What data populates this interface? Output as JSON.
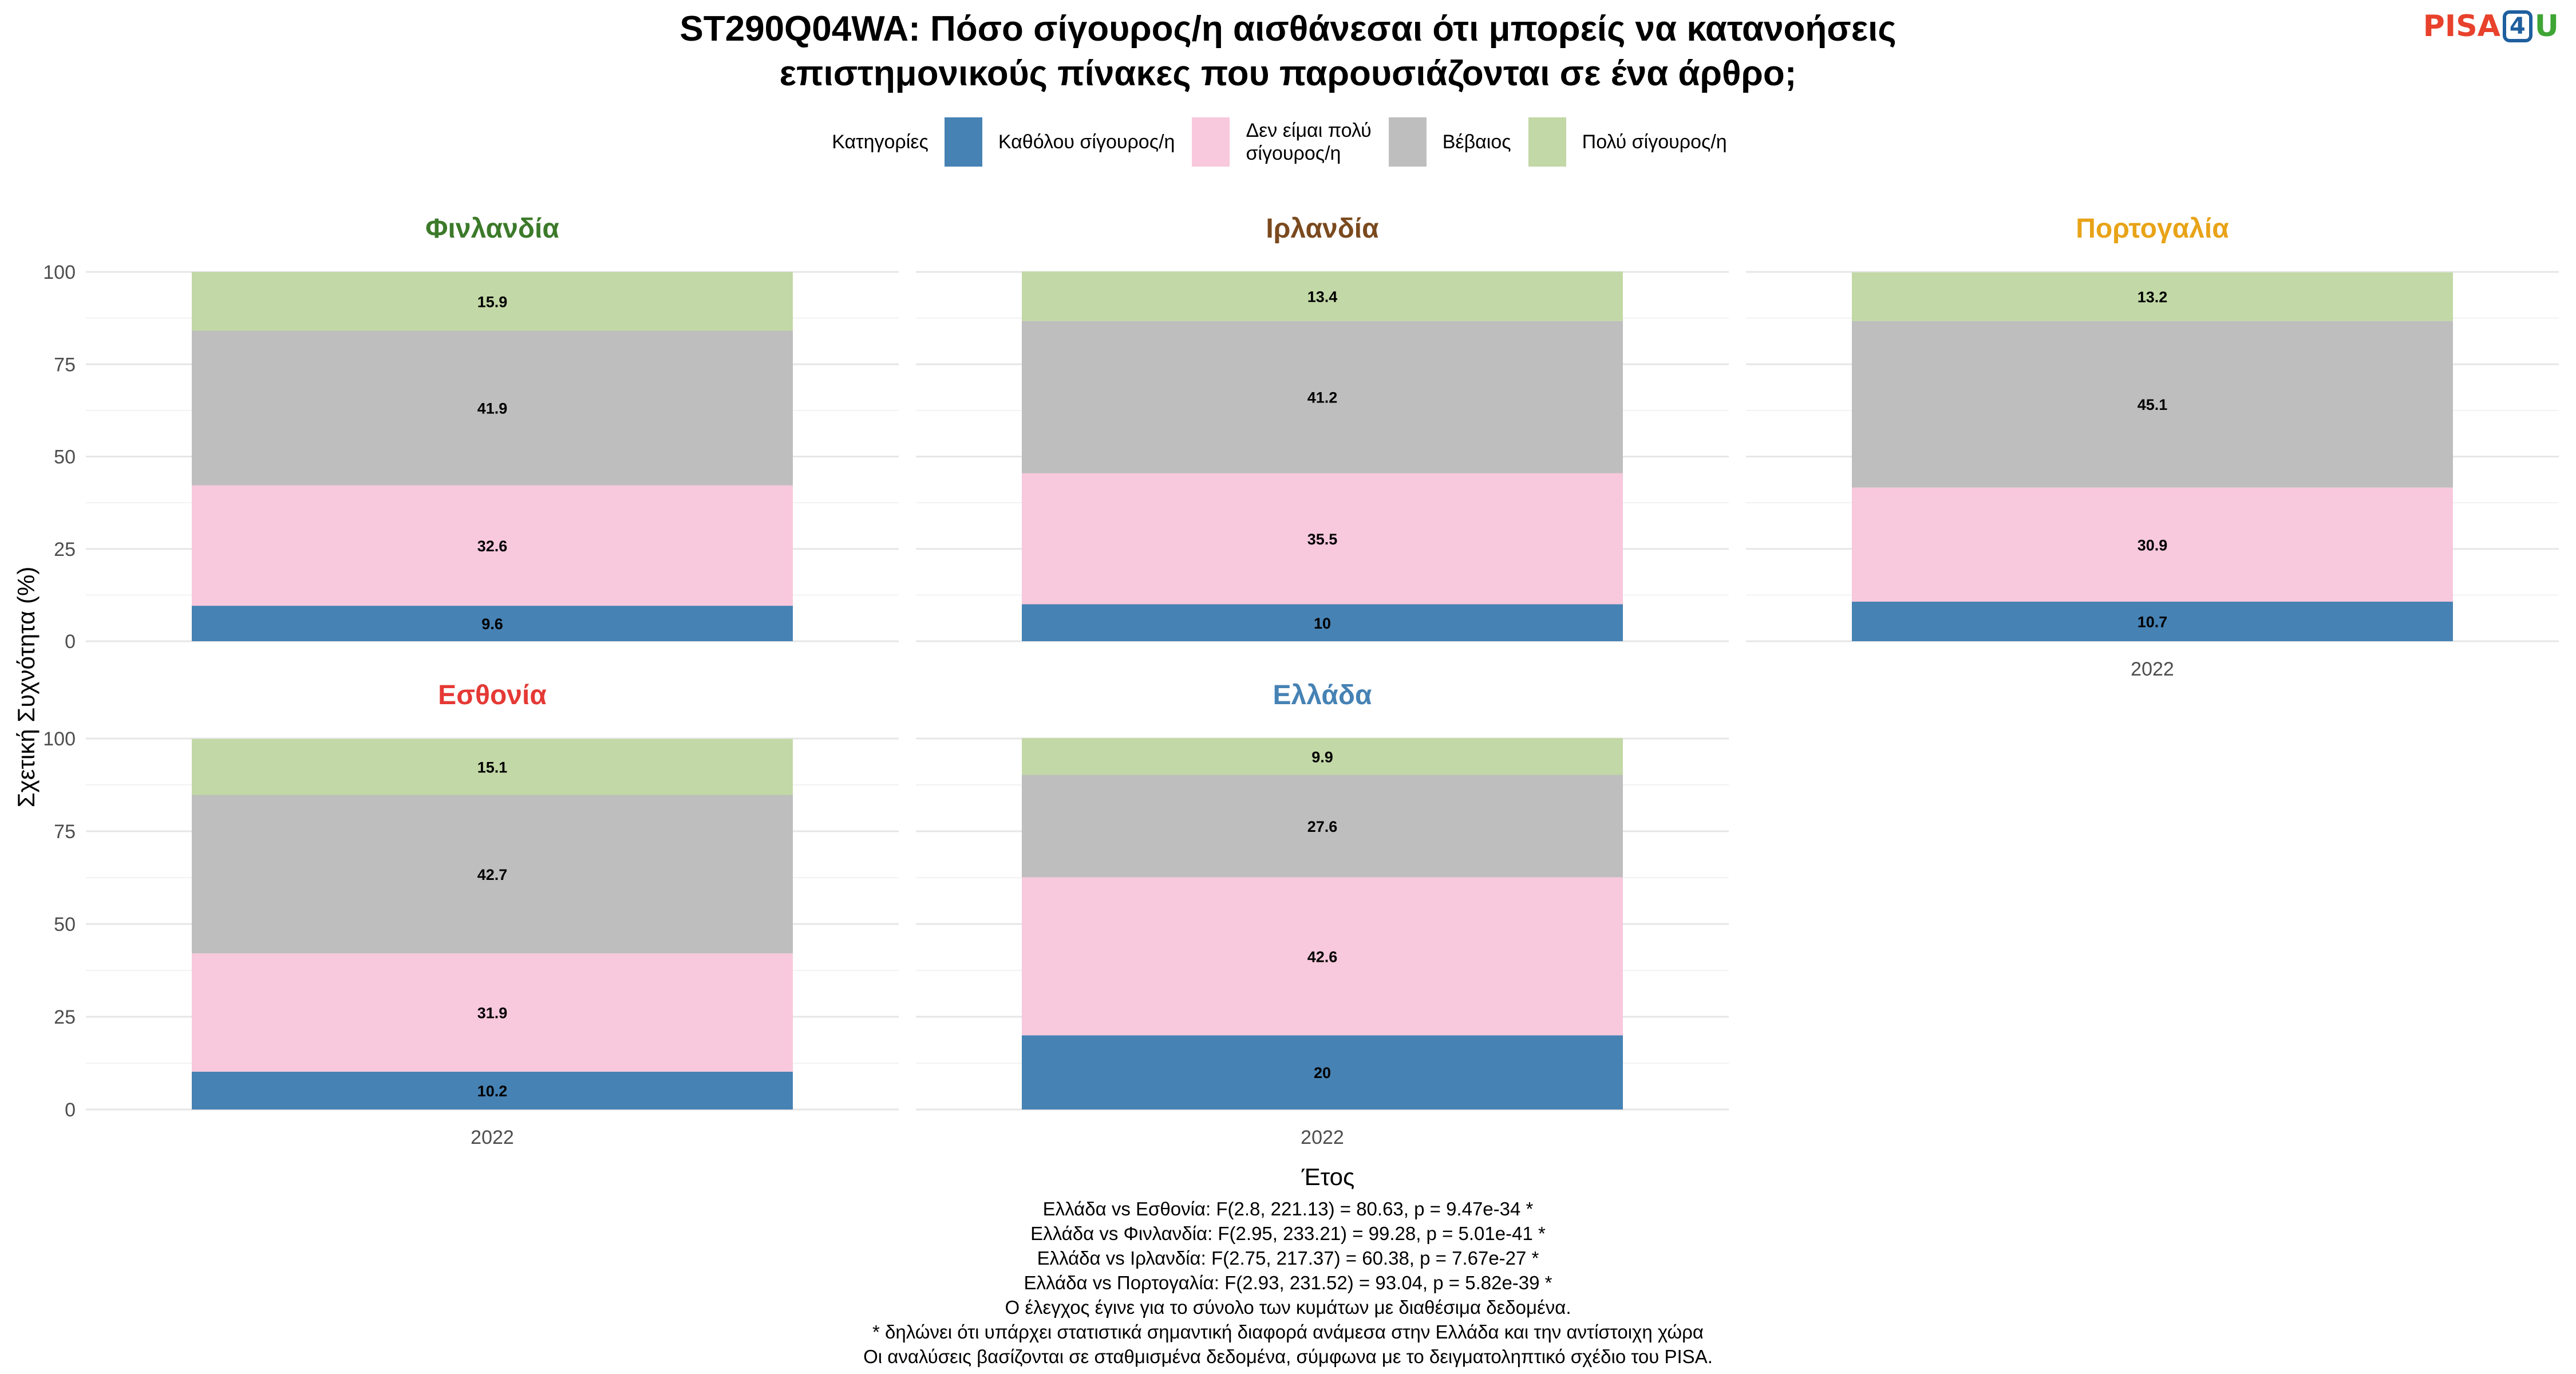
{
  "title": {
    "line1": "ST290Q04WA: Πόσο σίγουρος/η αισθάνεσαι ότι μπορείς να κατανοήσεις",
    "line2": "επιστημονικούς πίνακες που παρουσιάζονται σε ένα άρθρο;"
  },
  "logo": {
    "part1": "PISA",
    "part2": "4",
    "part3": "U"
  },
  "legend": {
    "title": "Κατηγορίες",
    "placement": "top",
    "items": [
      {
        "lines": [
          "Καθόλου σίγουρος/η"
        ],
        "color": "#4682b4"
      },
      {
        "lines": [
          "Δεν είμαι πολύ",
          "σίγουρος/η"
        ],
        "color": "#f8c8dc"
      },
      {
        "lines": [
          "Βέβαιος"
        ],
        "color": "#bebebe"
      },
      {
        "lines": [
          "Πολύ σίγουρος/η"
        ],
        "color": "#c2d8a6"
      }
    ]
  },
  "chart_data": {
    "type": "bar",
    "stacked": true,
    "xlabel": "Έτος",
    "ylabel": "Σχετική Συχνότητα (%)",
    "ylim": [
      0,
      100
    ],
    "yticks": [
      0,
      25,
      50,
      75,
      100
    ],
    "grid": true,
    "categories": [
      "2022"
    ],
    "series_names": [
      "Καθόλου σίγουρος/η",
      "Δεν είμαι πολύ σίγουρος/η",
      "Βέβαιος",
      "Πολύ σίγουρος/η"
    ],
    "series_colors": [
      "#4682b4",
      "#f8c8dc",
      "#bebebe",
      "#c2d8a6"
    ],
    "panels": [
      {
        "name": "Φινλανδία",
        "title_color": "#3c7a2a",
        "values": [
          9.6,
          32.6,
          41.9,
          15.9
        ],
        "labels": [
          "9.6",
          "32.6",
          "41.9",
          "15.9"
        ]
      },
      {
        "name": "Ιρλανδία",
        "title_color": "#7a4a1e",
        "values": [
          10,
          35.5,
          41.2,
          13.4
        ],
        "labels": [
          "10",
          "35.5",
          "41.2",
          "13.4"
        ]
      },
      {
        "name": "Πορτογαλία",
        "title_color": "#e8a317",
        "values": [
          10.7,
          30.9,
          45.1,
          13.2
        ],
        "labels": [
          "10.7",
          "30.9",
          "45.1",
          "13.2"
        ]
      },
      {
        "name": "Εσθονία",
        "title_color": "#e53935",
        "values": [
          10.2,
          31.9,
          42.7,
          15.1
        ],
        "labels": [
          "10.2",
          "31.9",
          "42.7",
          "15.1"
        ]
      },
      {
        "name": "Ελλάδα",
        "title_color": "#4682b4",
        "values": [
          20,
          42.6,
          27.6,
          9.9
        ],
        "labels": [
          "20",
          "42.6",
          "27.6",
          "9.9"
        ]
      }
    ]
  },
  "notes": [
    "Ελλάδα vs Εσθονία: F(2.8, 221.13) = 80.63, p = 9.47e-34 *",
    "Ελλάδα vs Φινλανδία: F(2.95, 233.21) = 99.28, p = 5.01e-41 *",
    "Ελλάδα vs Ιρλανδία: F(2.75, 217.37) = 60.38, p = 7.67e-27 *",
    "Ελλάδα vs Πορτογαλία: F(2.93, 231.52) = 93.04, p = 5.82e-39 *",
    "Ο έλεγχος έγινε για το σύνολο των κυμάτων με διαθέσιμα δεδομένα.",
    "* δηλώνει ότι υπάρχει στατιστικά σημαντική διαφορά ανάμεσα στην Ελλάδα και την αντίστοιχη χώρα",
    "Οι αναλύσεις βασίζονται σε σταθμισμένα δεδομένα, σύμφωνα με το δειγματοληπτικό σχέδιο του PISA."
  ]
}
